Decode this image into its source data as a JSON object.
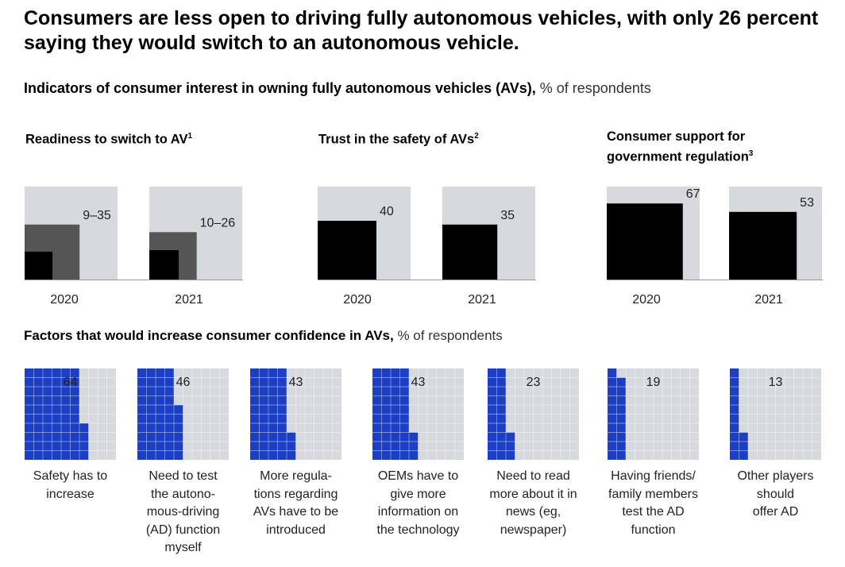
{
  "title": "Consumers are less open to driving fully autonomous vehicles, with only 26 percent saying they would switch to an autonomous vehicle.",
  "subtitle": {
    "bold": "Indicators of consumer interest in owning fully autonomous vehicles (AVs),",
    "unit": " % of respondents"
  },
  "section2": {
    "bold": "Factors that would increase consumer confidence in AVs,",
    "unit": " % of respondents"
  },
  "colors": {
    "background_panel": "#d6dade",
    "black_bar": "#000000",
    "range_bar": "#555555",
    "blue": "#1b3ec3"
  },
  "panels": [
    {
      "title": "Readiness to switch to AV",
      "sup": "1",
      "title_lines": []
    },
    {
      "title": "Trust in the safety of AVs",
      "sup": "2",
      "title_lines": []
    },
    {
      "title": "",
      "sup": "3",
      "title_lines": [
        "Consumer support for",
        "government regulation"
      ]
    }
  ],
  "chart_data": [
    {
      "type": "bar",
      "title": "Readiness to switch to AV",
      "categories": [
        "2020",
        "2021"
      ],
      "series": [
        {
          "name": "range_low",
          "values": [
            9,
            10
          ]
        },
        {
          "name": "range_high",
          "values": [
            35,
            26
          ]
        }
      ],
      "data_labels": [
        "9–35",
        "10–26"
      ],
      "ylim": [
        0,
        100
      ]
    },
    {
      "type": "bar",
      "title": "Trust in the safety of AVs",
      "categories": [
        "2020",
        "2021"
      ],
      "values": [
        40,
        35
      ],
      "data_labels": [
        "40",
        "35"
      ],
      "ylim": [
        0,
        100
      ]
    },
    {
      "type": "bar",
      "title": "Consumer support for government regulation",
      "categories": [
        "2020",
        "2021"
      ],
      "values": [
        67,
        53
      ],
      "data_labels": [
        "67",
        "53"
      ],
      "ylim": [
        0,
        100
      ]
    },
    {
      "type": "bar",
      "title": "Factors that would increase consumer confidence in AVs",
      "categories": [
        "Safety has to increase",
        "Need to test the autonomous-driving (AD) function myself",
        "More regulations regarding AVs have to be introduced",
        "OEMs have to give more information on the technology",
        "Need to read more about it in news (eg, newspaper)",
        "Having friends/ family members test the AD function",
        "Other players should offer AD"
      ],
      "values": [
        64,
        46,
        43,
        43,
        23,
        19,
        13
      ],
      "data_labels": [
        "64",
        "46",
        "43",
        "43",
        "23",
        "19",
        "13"
      ],
      "label_lines": [
        [
          "Safety has to",
          "increase"
        ],
        [
          "Need to test",
          "the autono-",
          "mous-driving",
          "(AD) function",
          "myself"
        ],
        [
          "More regula-",
          "tions regarding",
          "AVs have to be",
          "introduced"
        ],
        [
          "OEMs have to",
          "give more",
          "information on",
          "the technology"
        ],
        [
          "Need to read",
          "more about it in",
          "news (eg,",
          "newspaper)"
        ],
        [
          "Having friends/",
          "family members",
          "test the AD",
          "function"
        ],
        [
          "Other players",
          "should",
          "offer AD"
        ]
      ],
      "ylim": [
        0,
        100
      ]
    }
  ]
}
